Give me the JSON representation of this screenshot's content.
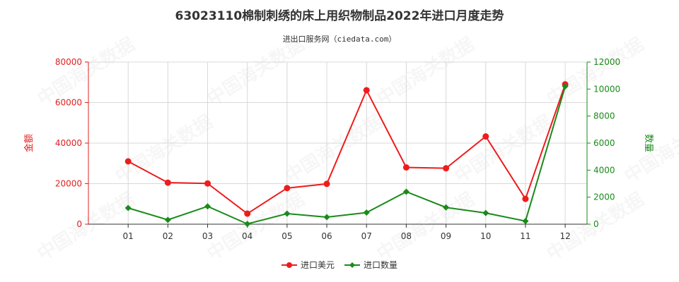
{
  "title": "63023110棉制刺绣的床上用织物制品2022年进口月度走势",
  "subtitle": "进出口服务网（ciedata.com）",
  "watermark": "中国海关数据",
  "chart_data": {
    "type": "line",
    "categories": [
      "01",
      "02",
      "03",
      "04",
      "05",
      "06",
      "07",
      "08",
      "09",
      "10",
      "11",
      "12"
    ],
    "series": [
      {
        "name": "进口美元",
        "axis": "left",
        "color": "#ee1c1c",
        "values": [
          31000,
          20500,
          20100,
          5200,
          17800,
          19900,
          66100,
          28000,
          27600,
          43300,
          12500,
          69000
        ]
      },
      {
        "name": "进口数量",
        "axis": "right",
        "color": "#1a8a1a",
        "values": [
          1200,
          320,
          1320,
          20,
          780,
          520,
          860,
          2400,
          1240,
          830,
          230,
          10200
        ]
      }
    ],
    "y_left": {
      "label": "金额",
      "min": 0,
      "max": 80000,
      "ticks": [
        0,
        20000,
        40000,
        60000,
        80000
      ],
      "color": "#e02020"
    },
    "y_right": {
      "label": "数量",
      "min": 0,
      "max": 12000,
      "ticks": [
        0,
        2000,
        4000,
        6000,
        8000,
        10000,
        12000
      ],
      "color": "#1a8a1a"
    },
    "grid": true,
    "legend": "bottom"
  }
}
